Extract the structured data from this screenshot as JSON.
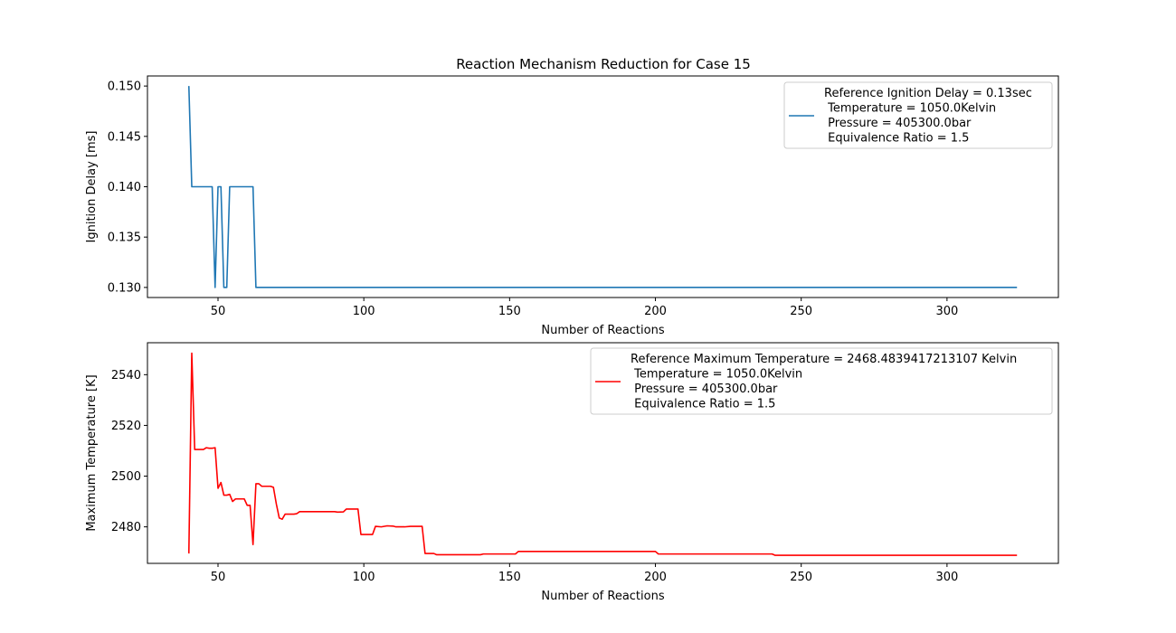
{
  "chart_data": [
    {
      "type": "line",
      "title": "Reaction Mechanism Reduction for Case 15",
      "xlabel": "Number of Reactions",
      "ylabel": "Ignition Delay [ms]",
      "xlim": [
        25.8,
        338.2
      ],
      "ylim": [
        0.129,
        0.151
      ],
      "xticks": [
        50,
        100,
        150,
        200,
        250,
        300
      ],
      "yticks": [
        0.13,
        0.135,
        0.14,
        0.145,
        0.15
      ],
      "ytick_format": 3,
      "legend_position": "top-right",
      "series": [
        {
          "name": "Reference Ignition Delay = 0.13sec\n Temperature = 1050.0Kelvin\n Pressure = 405300.0bar\n Equivalence Ratio = 1.5",
          "color": "#1f77b4",
          "points": [
            [
              40,
              0.15
            ],
            [
              41,
              0.14
            ],
            [
              42,
              0.14
            ],
            [
              48,
              0.14
            ],
            [
              49,
              0.13
            ],
            [
              50,
              0.14
            ],
            [
              51,
              0.14
            ],
            [
              52,
              0.13
            ],
            [
              53,
              0.13
            ],
            [
              54,
              0.14
            ],
            [
              55,
              0.14
            ],
            [
              62,
              0.14
            ],
            [
              63,
              0.13
            ],
            [
              324,
              0.13
            ]
          ]
        }
      ]
    },
    {
      "type": "line",
      "title": "",
      "xlabel": "Number of Reactions",
      "ylabel": "Maximum Temperature [K]",
      "xlim": [
        25.8,
        338.2
      ],
      "ylim": [
        2465.6,
        2552.6
      ],
      "xticks": [
        50,
        100,
        150,
        200,
        250,
        300
      ],
      "yticks": [
        2480,
        2500,
        2520,
        2540
      ],
      "ytick_format": 0,
      "legend_position": "top-right",
      "series": [
        {
          "name": "Reference Maximum Temperature = 2468.4839417213107 Kelvin\n Temperature = 1050.0Kelvin\n Pressure = 405300.0bar\n Equivalence Ratio = 1.5",
          "color": "#ff0000",
          "points": [
            [
              40,
              2469.5
            ],
            [
              41,
              2548.5
            ],
            [
              42,
              2510.5
            ],
            [
              45,
              2510.5
            ],
            [
              46,
              2511.2
            ],
            [
              47,
              2511.0
            ],
            [
              48,
              2511.0
            ],
            [
              49,
              2511.2
            ],
            [
              50,
              2495.2
            ],
            [
              51,
              2497.5
            ],
            [
              52,
              2492.5
            ],
            [
              53,
              2492.5
            ],
            [
              54,
              2492.8
            ],
            [
              55,
              2490.0
            ],
            [
              56,
              2491.0
            ],
            [
              58,
              2491.0
            ],
            [
              59,
              2491.0
            ],
            [
              60,
              2488.5
            ],
            [
              61,
              2488.5
            ],
            [
              62,
              2473.0
            ],
            [
              63,
              2497.0
            ],
            [
              64,
              2497.0
            ],
            [
              65,
              2496.0
            ],
            [
              68,
              2496.0
            ],
            [
              69,
              2495.6
            ],
            [
              70,
              2489.0
            ],
            [
              71,
              2483.5
            ],
            [
              72,
              2483.0
            ],
            [
              73,
              2485.0
            ],
            [
              74,
              2485.0
            ],
            [
              76,
              2485.0
            ],
            [
              77,
              2485.2
            ],
            [
              78,
              2486.0
            ],
            [
              90,
              2486.0
            ],
            [
              91,
              2485.8
            ],
            [
              93,
              2485.9
            ],
            [
              94,
              2487.0
            ],
            [
              98,
              2487.0
            ],
            [
              99,
              2477.0
            ],
            [
              100,
              2477.0
            ],
            [
              103,
              2477.0
            ],
            [
              104,
              2480.2
            ],
            [
              106,
              2480.0
            ],
            [
              108,
              2480.4
            ],
            [
              110,
              2480.3
            ],
            [
              111,
              2480.0
            ],
            [
              114,
              2480.0
            ],
            [
              116,
              2480.2
            ],
            [
              120,
              2480.2
            ],
            [
              121,
              2469.5
            ],
            [
              124,
              2469.5
            ],
            [
              125,
              2469.0
            ],
            [
              140,
              2469.0
            ],
            [
              141,
              2469.3
            ],
            [
              152,
              2469.3
            ],
            [
              153,
              2470.3
            ],
            [
              200,
              2470.3
            ],
            [
              201,
              2469.3
            ],
            [
              240,
              2469.3
            ],
            [
              241,
              2468.8
            ],
            [
              324,
              2468.8
            ]
          ]
        }
      ]
    }
  ]
}
